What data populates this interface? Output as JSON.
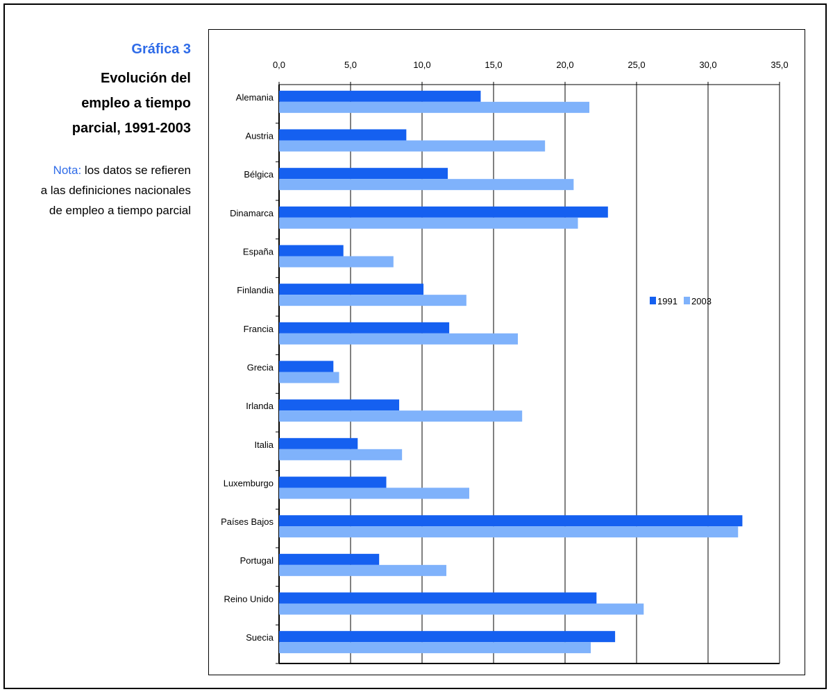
{
  "sidebar": {
    "figure_label": "Gráfica 3",
    "title_lines": [
      "Evolución del",
      "empleo a  tiempo",
      "parcial, 1991-2003"
    ],
    "note_label": "Nota:",
    "note_text_lines": [
      " los datos se refieren",
      "a las definiciones nacionales",
      "de empleo a tiempo parcial"
    ]
  },
  "colors": {
    "accent": "#2e6be8",
    "series_1991": "#1560f0",
    "series_2003": "#7fb2fb",
    "gridline": "#000000"
  },
  "chart_data": {
    "type": "bar",
    "orientation": "horizontal",
    "categories": [
      "Alemania",
      "Austria",
      "Bélgica",
      "Dinamarca",
      "España",
      "Finlandia",
      "Francia",
      "Grecia",
      "Irlanda",
      "Italia",
      "Luxemburgo",
      "Países Bajos",
      "Portugal",
      "Reino Unido",
      "Suecia"
    ],
    "series": [
      {
        "name": "1991",
        "values": [
          14.1,
          8.9,
          11.8,
          23.0,
          4.5,
          10.1,
          11.9,
          3.8,
          8.4,
          5.5,
          7.5,
          32.4,
          7.0,
          22.2,
          23.5
        ]
      },
      {
        "name": "2003",
        "values": [
          21.7,
          18.6,
          20.6,
          20.9,
          8.0,
          13.1,
          16.7,
          4.2,
          17.0,
          8.6,
          13.3,
          32.1,
          11.7,
          25.5,
          21.8
        ]
      }
    ],
    "xlim": [
      0,
      35
    ],
    "x_ticks": [
      "0,0",
      "5,0",
      "10,0",
      "15,0",
      "20,0",
      "25,0",
      "30,0",
      "35,0"
    ],
    "grid": true,
    "legend_position": "right",
    "legend_labels": [
      "1991",
      "2003"
    ],
    "title": "",
    "xlabel": "",
    "ylabel": ""
  }
}
